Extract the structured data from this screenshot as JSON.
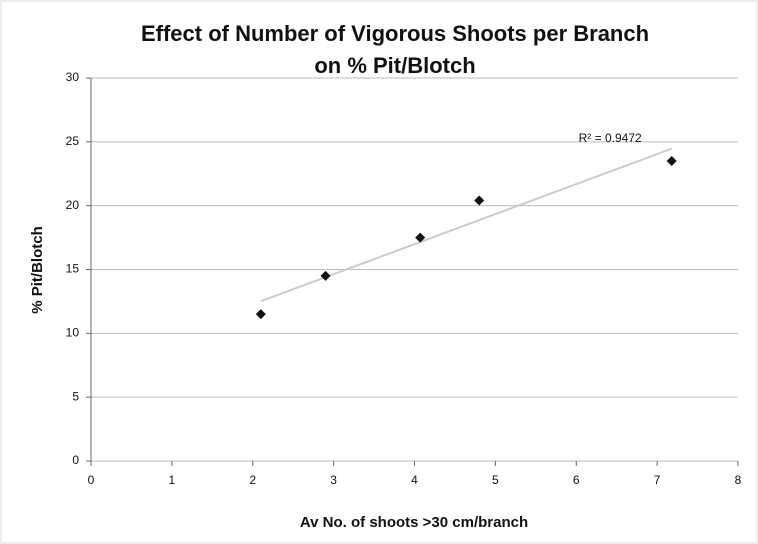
{
  "chart_data": {
    "type": "scatter",
    "title": "Effect of Number of Vigorous Shoots per Branch on % Pit/Blotch",
    "x_label": "Av No. of shoots >30 cm/branch",
    "y_label": "% Pit/Blotch",
    "series": [
      {
        "name": "% Pit/Blotch",
        "color": "#111111",
        "x": [
          2.1,
          2.9,
          4.07,
          4.8,
          7.18
        ],
        "values": [
          11.5,
          14.5,
          17.5,
          20.4,
          23.5
        ]
      }
    ],
    "trendline": true,
    "annotation": "R² = 0.9472",
    "xlim": [
      0,
      8
    ],
    "xticks": [
      0,
      1,
      2,
      3,
      4,
      5,
      6,
      7,
      8
    ],
    "ylim": [
      0,
      30
    ],
    "yticks": [
      0,
      5,
      10,
      15,
      20,
      25,
      30
    ],
    "grid": true
  }
}
